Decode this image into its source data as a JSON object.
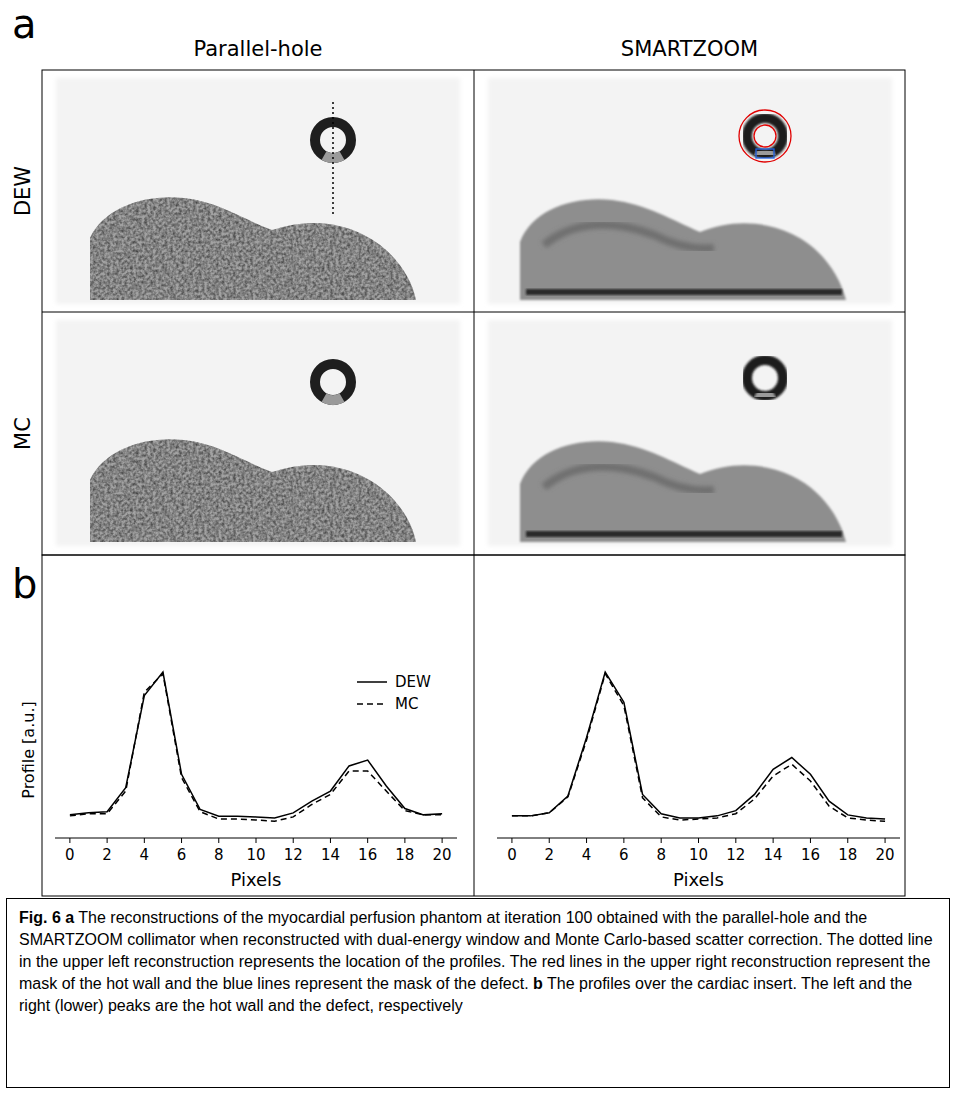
{
  "panel_a": {
    "letter": "a",
    "columns": [
      "Parallel-hole",
      "SMARTZOOM"
    ],
    "rows": [
      "DEW",
      "MC"
    ]
  },
  "panel_b": {
    "letter": "b"
  },
  "chart_data": [
    {
      "type": "line",
      "y_label": "Profile [a.u.]",
      "x_label": "Pixels",
      "x": [
        0,
        1,
        2,
        3,
        4,
        5,
        6,
        7,
        8,
        9,
        10,
        11,
        12,
        13,
        14,
        15,
        16,
        17,
        18,
        19,
        20
      ],
      "xlim": [
        -0.8,
        20.8
      ],
      "xticks": [
        0,
        2,
        4,
        6,
        8,
        10,
        12,
        14,
        16,
        18,
        20
      ],
      "ylim": [
        0,
        1.05
      ],
      "tick_labels": "x",
      "legend": "upper right",
      "series": [
        {
          "name": "DEW",
          "color": "#000000",
          "line_style": "solid",
          "values": [
            0.138,
            0.15,
            0.157,
            0.3,
            0.85,
            0.99,
            0.38,
            0.17,
            0.13,
            0.13,
            0.126,
            0.12,
            0.15,
            0.22,
            0.28,
            0.43,
            0.465,
            0.31,
            0.176,
            0.138,
            0.145
          ]
        },
        {
          "name": "MC",
          "color": "#000000",
          "line_style": "dashed",
          "values": [
            0.132,
            0.145,
            0.145,
            0.28,
            0.87,
            0.98,
            0.36,
            0.157,
            0.113,
            0.113,
            0.107,
            0.1,
            0.126,
            0.2,
            0.26,
            0.4,
            0.4,
            0.28,
            0.163,
            0.138,
            0.138
          ]
        }
      ]
    },
    {
      "type": "line",
      "x_label": "Pixels",
      "x": [
        0,
        1,
        2,
        3,
        4,
        5,
        6,
        7,
        8,
        9,
        10,
        11,
        12,
        13,
        14,
        15,
        16,
        17,
        18,
        19,
        20
      ],
      "xlim": [
        -0.8,
        20.8
      ],
      "xticks": [
        0,
        2,
        4,
        6,
        8,
        10,
        12,
        14,
        16,
        18,
        20
      ],
      "ylim": [
        0,
        1.05
      ],
      "tick_labels": "x",
      "series": [
        {
          "color": "#000000",
          "line_style": "solid",
          "values": [
            0.132,
            0.132,
            0.15,
            0.25,
            0.6,
            0.99,
            0.81,
            0.26,
            0.145,
            0.12,
            0.12,
            0.132,
            0.163,
            0.26,
            0.41,
            0.48,
            0.38,
            0.22,
            0.138,
            0.12,
            0.113
          ]
        },
        {
          "color": "#000000",
          "line_style": "dashed",
          "values": [
            0.132,
            0.132,
            0.15,
            0.245,
            0.585,
            0.98,
            0.79,
            0.24,
            0.126,
            0.107,
            0.113,
            0.12,
            0.145,
            0.233,
            0.37,
            0.44,
            0.34,
            0.19,
            0.12,
            0.107,
            0.1
          ]
        }
      ]
    }
  ],
  "caption": {
    "label": "Fig. 6",
    "parts": [
      {
        "letter": "a",
        "text": "The reconstructions of the myocardial perfusion phantom at iteration 100 obtained with the parallel-hole and the SMARTZOOM collimator when reconstructed with dual-energy window and Monte Carlo-based scatter correction. The dotted line in the upper left reconstruction represents the location of the profiles. The red lines in the upper right reconstruction represent the mask of the hot wall and the blue lines represent the mask of the defect."
      },
      {
        "letter": "b",
        "text": "The profiles over the cardiac insert. The left and the right (lower) peaks are the hot wall and the defect, respectively"
      }
    ]
  }
}
